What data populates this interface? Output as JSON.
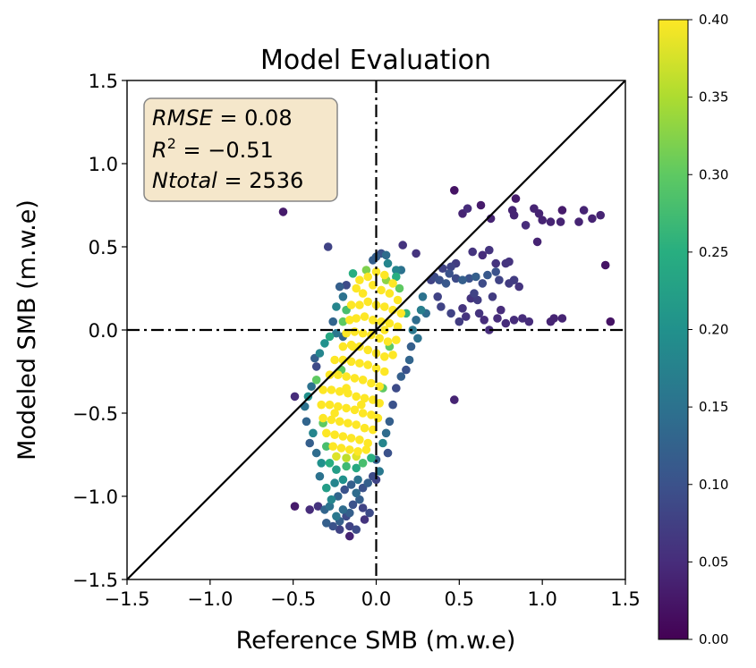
{
  "chart_data": {
    "type": "scatter",
    "title": "Model Evaluation",
    "xlabel": "Reference SMB (m.w.e)",
    "ylabel": "Modeled SMB (m.w.e)",
    "xlim": [
      -1.5,
      1.5
    ],
    "ylim": [
      -1.5,
      1.5
    ],
    "xticks": [
      "−1.5",
      "−1.0",
      "−0.5",
      "0.0",
      "0.5",
      "1.0",
      "1.5"
    ],
    "yticks": [
      "−1.5",
      "−1.0",
      "−0.5",
      "0.0",
      "0.5",
      "1.0",
      "1.5"
    ],
    "x_tick_values": [
      -1.5,
      -1.0,
      -0.5,
      0.0,
      0.5,
      1.0,
      1.5
    ],
    "y_tick_values": [
      -1.5,
      -1.0,
      -0.5,
      0.0,
      0.5,
      1.0,
      1.5
    ],
    "grid": false,
    "colormap": "viridis",
    "colorbar": {
      "range": [
        0.0,
        0.4
      ],
      "tick_values": [
        0.0,
        0.05,
        0.1,
        0.15,
        0.2,
        0.25,
        0.3,
        0.35,
        0.4
      ],
      "ticks": [
        "0.00",
        "0.05",
        "0.10",
        "0.15",
        "0.20",
        "0.25",
        "0.30",
        "0.35",
        "0.40"
      ]
    },
    "annotation": {
      "rmse_label": "RMSE",
      "rmse_value": "0.08",
      "r2_label": "R",
      "r2_exp": "2",
      "r2_value": "−0.51",
      "ntotal_label": "Ntotal",
      "ntotal_value": "2536",
      "box_color": "#f5e6c9"
    },
    "reference_lines": [
      {
        "type": "identity",
        "style": "solid",
        "color": "#000000"
      },
      {
        "type": "vertical",
        "x": 0.0,
        "style": "dashdot",
        "color": "#000000"
      },
      {
        "type": "horizontal",
        "y": 0.0,
        "style": "dashdot",
        "color": "#000000"
      }
    ],
    "points": [
      [
        -0.56,
        0.71,
        0.03
      ],
      [
        0.47,
        0.84,
        0.02
      ],
      [
        0.52,
        0.7,
        0.04
      ],
      [
        0.55,
        0.73,
        0.05
      ],
      [
        0.63,
        0.75,
        0.03
      ],
      [
        0.69,
        0.67,
        0.04
      ],
      [
        0.82,
        0.72,
        0.04
      ],
      [
        0.84,
        0.79,
        0.03
      ],
      [
        0.83,
        0.69,
        0.04
      ],
      [
        0.9,
        0.63,
        0.05
      ],
      [
        0.95,
        0.73,
        0.04
      ],
      [
        0.98,
        0.7,
        0.04
      ],
      [
        1.0,
        0.66,
        0.04
      ],
      [
        1.05,
        0.65,
        0.04
      ],
      [
        1.12,
        0.72,
        0.03
      ],
      [
        1.11,
        0.65,
        0.04
      ],
      [
        1.22,
        0.65,
        0.04
      ],
      [
        1.25,
        0.72,
        0.04
      ],
      [
        1.3,
        0.67,
        0.04
      ],
      [
        1.35,
        0.69,
        0.04
      ],
      [
        1.38,
        0.39,
        0.02
      ],
      [
        1.41,
        0.05,
        0.02
      ],
      [
        0.97,
        0.53,
        0.04
      ],
      [
        1.05,
        0.05,
        0.04
      ],
      [
        1.07,
        0.07,
        0.04
      ],
      [
        1.12,
        0.07,
        0.04
      ],
      [
        0.47,
        -0.42,
        0.04
      ],
      [
        -0.49,
        -1.06,
        0.03
      ],
      [
        -0.49,
        -0.4,
        0.05
      ],
      [
        -0.29,
        0.5,
        0.08
      ],
      [
        0.16,
        0.51,
        0.06
      ],
      [
        0.24,
        0.46,
        0.06
      ],
      [
        0.45,
        0.38,
        0.08
      ],
      [
        0.48,
        0.4,
        0.07
      ],
      [
        0.58,
        0.47,
        0.06
      ],
      [
        0.64,
        0.45,
        0.05
      ],
      [
        0.68,
        0.48,
        0.06
      ],
      [
        0.72,
        0.4,
        0.06
      ],
      [
        0.78,
        0.4,
        0.06
      ],
      [
        0.8,
        0.41,
        0.06
      ],
      [
        0.83,
        0.3,
        0.07
      ],
      [
        0.8,
        0.28,
        0.07
      ],
      [
        0.86,
        0.26,
        0.06
      ],
      [
        0.74,
        0.3,
        0.08
      ],
      [
        0.52,
        0.13,
        0.06
      ],
      [
        0.54,
        0.08,
        0.06
      ],
      [
        0.57,
        0.19,
        0.06
      ],
      [
        0.62,
        0.1,
        0.06
      ],
      [
        0.65,
        0.06,
        0.05
      ],
      [
        0.68,
        0.0,
        0.05
      ],
      [
        0.73,
        0.07,
        0.05
      ],
      [
        0.75,
        0.12,
        0.05
      ],
      [
        0.78,
        0.04,
        0.05
      ],
      [
        0.83,
        0.06,
        0.05
      ],
      [
        0.88,
        0.07,
        0.05
      ],
      [
        0.92,
        0.05,
        0.05
      ],
      [
        0.59,
        0.22,
        0.08
      ],
      [
        0.61,
        0.18,
        0.07
      ],
      [
        0.7,
        0.2,
        0.07
      ],
      [
        0.64,
        0.28,
        0.09
      ],
      [
        0.67,
        0.33,
        0.11
      ],
      [
        0.72,
        0.35,
        0.1
      ],
      [
        0.6,
        0.32,
        0.12
      ],
      [
        0.56,
        0.31,
        0.1
      ],
      [
        0.52,
        0.3,
        0.12
      ],
      [
        0.48,
        0.31,
        0.09
      ],
      [
        0.44,
        0.34,
        0.1
      ],
      [
        0.42,
        0.28,
        0.11
      ],
      [
        0.38,
        0.3,
        0.1
      ],
      [
        0.35,
        0.32,
        0.09
      ],
      [
        0.33,
        0.3,
        0.08
      ],
      [
        0.4,
        0.37,
        0.08
      ],
      [
        0.37,
        0.2,
        0.08
      ],
      [
        0.39,
        0.14,
        0.08
      ],
      [
        0.45,
        0.1,
        0.08
      ],
      [
        0.5,
        0.05,
        0.07
      ],
      [
        0.0,
        0.44,
        0.12
      ],
      [
        0.03,
        0.46,
        0.1
      ],
      [
        0.06,
        0.45,
        0.14
      ],
      [
        -0.02,
        0.42,
        0.12
      ],
      [
        0.07,
        0.4,
        0.18
      ],
      [
        0.12,
        0.36,
        0.18
      ],
      [
        0.15,
        0.36,
        0.15
      ],
      [
        -0.22,
        0.26,
        0.12
      ],
      [
        -0.18,
        0.27,
        0.09
      ],
      [
        -0.2,
        0.2,
        0.15
      ],
      [
        -0.24,
        0.14,
        0.18
      ],
      [
        -0.26,
        0.05,
        0.13
      ],
      [
        -0.24,
        -0.02,
        0.16
      ],
      [
        -0.2,
        -0.04,
        0.13
      ],
      [
        0.28,
        0.2,
        0.15
      ],
      [
        0.3,
        0.1,
        0.14
      ],
      [
        0.27,
        0.12,
        0.17
      ],
      [
        0.24,
        0.06,
        0.14
      ],
      [
        0.22,
        0.0,
        0.16
      ],
      [
        0.25,
        -0.05,
        0.15
      ],
      [
        0.21,
        -0.1,
        0.12
      ],
      [
        0.2,
        -0.18,
        0.13
      ],
      [
        0.18,
        -0.24,
        0.1
      ],
      [
        0.15,
        -0.28,
        0.12
      ],
      [
        0.12,
        -0.35,
        0.09
      ],
      [
        0.1,
        -0.45,
        0.1
      ],
      [
        0.08,
        -0.55,
        0.12
      ],
      [
        0.06,
        -0.62,
        0.14
      ],
      [
        0.04,
        -0.68,
        0.18
      ],
      [
        0.07,
        -0.74,
        0.1
      ],
      [
        0.0,
        -0.78,
        0.12
      ],
      [
        0.02,
        -0.85,
        0.16
      ],
      [
        0.0,
        -0.9,
        0.08
      ],
      [
        -0.02,
        -0.88,
        0.09
      ],
      [
        -0.05,
        -0.92,
        0.12
      ],
      [
        -0.08,
        -0.95,
        0.1
      ],
      [
        -0.1,
        -1.02,
        0.12
      ],
      [
        -0.12,
        -0.98,
        0.14
      ],
      [
        -0.14,
        -1.05,
        0.1
      ],
      [
        -0.16,
        -1.1,
        0.12
      ],
      [
        -0.18,
        -1.12,
        0.09
      ],
      [
        -0.2,
        -1.08,
        0.14
      ],
      [
        -0.22,
        -1.15,
        0.12
      ],
      [
        -0.24,
        -1.12,
        0.16
      ],
      [
        -0.26,
        -1.18,
        0.1
      ],
      [
        -0.28,
        -1.06,
        0.15
      ],
      [
        -0.31,
        -1.08,
        0.13
      ],
      [
        -0.27,
        -1.02,
        0.18
      ],
      [
        -0.23,
        -1.0,
        0.13
      ],
      [
        -0.19,
        -0.96,
        0.1
      ],
      [
        -0.15,
        -0.93,
        0.12
      ],
      [
        -0.11,
        -0.9,
        0.15
      ],
      [
        -0.07,
        -1.14,
        0.06
      ],
      [
        -0.16,
        -1.18,
        0.08
      ],
      [
        -0.12,
        -1.2,
        0.09
      ],
      [
        -0.22,
        -1.2,
        0.08
      ],
      [
        -0.3,
        -1.16,
        0.12
      ],
      [
        -0.4,
        -1.08,
        0.05
      ],
      [
        -0.35,
        -1.06,
        0.06
      ],
      [
        -0.16,
        -1.24,
        0.04
      ],
      [
        -0.08,
        -1.07,
        0.08
      ],
      [
        -0.04,
        -1.1,
        0.09
      ],
      [
        -0.2,
        -0.9,
        0.2
      ],
      [
        -0.25,
        -0.92,
        0.18
      ],
      [
        -0.3,
        -0.95,
        0.22
      ],
      [
        -0.34,
        -0.88,
        0.15
      ],
      [
        -0.33,
        -0.8,
        0.2
      ],
      [
        -0.28,
        -0.8,
        0.25
      ],
      [
        -0.24,
        -0.84,
        0.22
      ],
      [
        -0.18,
        -0.82,
        0.27
      ],
      [
        -0.12,
        -0.83,
        0.24
      ],
      [
        -0.08,
        -0.8,
        0.28
      ],
      [
        -0.03,
        -0.77,
        0.25
      ],
      [
        -0.36,
        -0.74,
        0.14
      ],
      [
        -0.4,
        -0.68,
        0.12
      ],
      [
        -0.38,
        -0.62,
        0.18
      ],
      [
        -0.42,
        -0.55,
        0.13
      ],
      [
        -0.43,
        -0.46,
        0.15
      ],
      [
        -0.41,
        -0.4,
        0.2
      ],
      [
        -0.39,
        -0.34,
        0.15
      ],
      [
        -0.36,
        -0.22,
        0.09
      ],
      [
        -0.37,
        -0.17,
        0.12
      ],
      [
        -0.34,
        -0.14,
        0.18
      ],
      [
        -0.31,
        -0.08,
        0.2
      ],
      [
        -0.28,
        -0.04,
        0.24
      ],
      [
        -0.21,
        -0.24,
        0.3
      ],
      [
        -0.36,
        -0.3,
        0.3
      ],
      [
        -0.32,
        -0.56,
        0.3
      ],
      [
        -0.3,
        -0.7,
        0.28
      ],
      [
        0.04,
        -0.35,
        0.3
      ],
      [
        0.08,
        -0.1,
        0.3
      ],
      [
        0.14,
        0.25,
        0.3
      ],
      [
        0.18,
        0.1,
        0.26
      ],
      [
        0.12,
        0.32,
        0.25
      ],
      [
        -0.14,
        0.34,
        0.25
      ],
      [
        -0.18,
        0.12,
        0.28
      ],
      [
        -0.2,
        0.05,
        0.3
      ],
      [
        -0.06,
        0.36,
        0.32
      ],
      [
        0.06,
        0.3,
        0.33
      ],
      [
        -0.1,
        0.3,
        0.4
      ],
      [
        -0.05,
        0.32,
        0.4
      ],
      [
        0.0,
        0.35,
        0.4
      ],
      [
        0.05,
        0.33,
        0.4
      ],
      [
        0.1,
        0.28,
        0.4
      ],
      [
        -0.12,
        0.25,
        0.4
      ],
      [
        -0.08,
        0.22,
        0.4
      ],
      [
        -0.02,
        0.27,
        0.4
      ],
      [
        0.03,
        0.24,
        0.4
      ],
      [
        0.08,
        0.22,
        0.4
      ],
      [
        0.13,
        0.18,
        0.4
      ],
      [
        -0.15,
        0.15,
        0.4
      ],
      [
        -0.1,
        0.15,
        0.4
      ],
      [
        -0.05,
        0.17,
        0.4
      ],
      [
        0.0,
        0.15,
        0.4
      ],
      [
        0.05,
        0.14,
        0.4
      ],
      [
        0.1,
        0.12,
        0.4
      ],
      [
        0.15,
        0.1,
        0.4
      ],
      [
        -0.16,
        0.06,
        0.4
      ],
      [
        -0.12,
        0.07,
        0.4
      ],
      [
        -0.07,
        0.08,
        0.4
      ],
      [
        -0.02,
        0.06,
        0.4
      ],
      [
        0.03,
        0.05,
        0.4
      ],
      [
        0.08,
        0.04,
        0.4
      ],
      [
        0.13,
        0.02,
        0.4
      ],
      [
        -0.18,
        -0.02,
        0.4
      ],
      [
        -0.13,
        -0.01,
        0.4
      ],
      [
        -0.08,
        -0.02,
        0.4
      ],
      [
        -0.03,
        -0.03,
        0.4
      ],
      [
        0.02,
        -0.05,
        0.4
      ],
      [
        0.07,
        -0.07,
        0.4
      ],
      [
        0.12,
        -0.06,
        0.4
      ],
      [
        -0.2,
        -0.1,
        0.4
      ],
      [
        -0.15,
        -0.09,
        0.4
      ],
      [
        -0.1,
        -0.1,
        0.4
      ],
      [
        -0.05,
        -0.12,
        0.4
      ],
      [
        0.0,
        -0.14,
        0.4
      ],
      [
        0.05,
        -0.16,
        0.4
      ],
      [
        0.1,
        -0.15,
        0.4
      ],
      [
        -0.25,
        -0.18,
        0.4
      ],
      [
        -0.2,
        -0.18,
        0.4
      ],
      [
        -0.15,
        -0.19,
        0.4
      ],
      [
        -0.1,
        -0.2,
        0.4
      ],
      [
        -0.05,
        -0.21,
        0.4
      ],
      [
        0.0,
        -0.23,
        0.4
      ],
      [
        0.05,
        -0.25,
        0.4
      ],
      [
        -0.28,
        -0.27,
        0.4
      ],
      [
        -0.23,
        -0.27,
        0.4
      ],
      [
        -0.18,
        -0.28,
        0.4
      ],
      [
        -0.13,
        -0.29,
        0.4
      ],
      [
        -0.08,
        -0.3,
        0.4
      ],
      [
        -0.03,
        -0.32,
        0.4
      ],
      [
        0.02,
        -0.34,
        0.4
      ],
      [
        -0.32,
        -0.36,
        0.4
      ],
      [
        -0.27,
        -0.36,
        0.4
      ],
      [
        -0.22,
        -0.37,
        0.4
      ],
      [
        -0.17,
        -0.38,
        0.4
      ],
      [
        -0.12,
        -0.4,
        0.4
      ],
      [
        -0.07,
        -0.41,
        0.4
      ],
      [
        -0.02,
        -0.42,
        0.4
      ],
      [
        0.02,
        -0.44,
        0.4
      ],
      [
        -0.33,
        -0.45,
        0.4
      ],
      [
        -0.28,
        -0.45,
        0.4
      ],
      [
        -0.23,
        -0.46,
        0.4
      ],
      [
        -0.18,
        -0.47,
        0.4
      ],
      [
        -0.13,
        -0.48,
        0.4
      ],
      [
        -0.08,
        -0.5,
        0.4
      ],
      [
        -0.03,
        -0.51,
        0.4
      ],
      [
        0.01,
        -0.53,
        0.4
      ],
      [
        -0.32,
        -0.53,
        0.4
      ],
      [
        -0.27,
        -0.54,
        0.4
      ],
      [
        -0.22,
        -0.55,
        0.4
      ],
      [
        -0.17,
        -0.56,
        0.4
      ],
      [
        -0.12,
        -0.57,
        0.4
      ],
      [
        -0.07,
        -0.59,
        0.4
      ],
      [
        -0.02,
        -0.6,
        0.4
      ],
      [
        -0.3,
        -0.62,
        0.4
      ],
      [
        -0.25,
        -0.63,
        0.4
      ],
      [
        -0.2,
        -0.64,
        0.4
      ],
      [
        -0.15,
        -0.65,
        0.4
      ],
      [
        -0.1,
        -0.66,
        0.4
      ],
      [
        -0.05,
        -0.68,
        0.4
      ],
      [
        -0.26,
        -0.7,
        0.4
      ],
      [
        -0.21,
        -0.71,
        0.4
      ],
      [
        -0.16,
        -0.72,
        0.4
      ],
      [
        -0.11,
        -0.73,
        0.4
      ],
      [
        -0.06,
        -0.72,
        0.4
      ],
      [
        -0.24,
        -0.76,
        0.38
      ],
      [
        -0.18,
        -0.77,
        0.36
      ],
      [
        -0.12,
        -0.76,
        0.38
      ],
      [
        -0.14,
        -0.1,
        0.4
      ],
      [
        -0.18,
        -0.35,
        0.4
      ],
      [
        -0.09,
        -0.45,
        0.4
      ],
      [
        -0.25,
        -0.5,
        0.4
      ],
      [
        0.05,
        0.0,
        0.4
      ]
    ]
  }
}
